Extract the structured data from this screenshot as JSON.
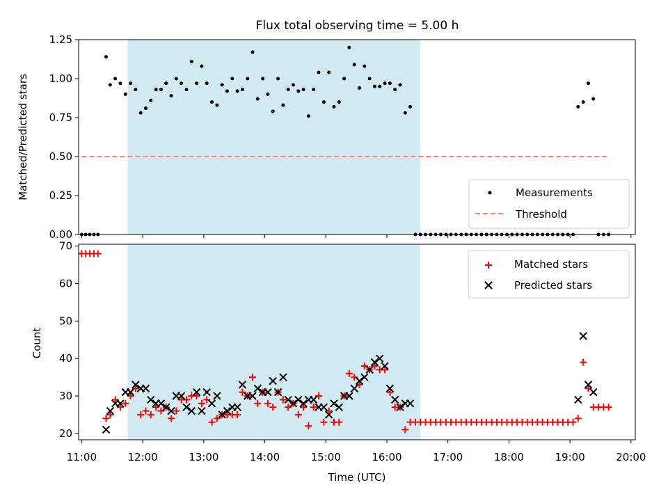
{
  "title": "Flux total observing time = 5.00 h",
  "colors": {
    "band": "#add8e6",
    "measurement": "#000000",
    "threshold": "#ff7f7f",
    "matched": "#ff0000",
    "predicted": "#000000"
  },
  "chart_data": [
    {
      "type": "scatter",
      "ylabel": "Matched/Predicted stars",
      "ylim": [
        0,
        1.25
      ],
      "yticks": [
        "0.00",
        "0.25",
        "0.50",
        "0.75",
        "1.00",
        "1.25"
      ],
      "xlim": [
        10.95,
        20.07
      ],
      "xticks": [
        "11:00",
        "12:00",
        "13:00",
        "14:00",
        "15:00",
        "16:00",
        "17:00",
        "18:00",
        "19:00",
        "20:00"
      ],
      "shaded_interval": [
        "11:25",
        "16:25"
      ],
      "legend": {
        "position": "bottom-right",
        "entries": [
          "Measurements",
          "Threshold"
        ]
      },
      "threshold": {
        "name": "Threshold",
        "y": 0.5,
        "x": [
          11.0,
          19.6
        ]
      },
      "series": [
        {
          "name": "Measurements",
          "x": [
            11.0,
            11.067,
            11.133,
            11.2,
            11.267,
            11.4,
            11.467,
            11.55,
            11.633,
            11.717,
            11.8,
            11.883,
            11.967,
            12.05,
            12.133,
            12.217,
            12.3,
            12.383,
            12.467,
            12.55,
            12.633,
            12.717,
            12.8,
            12.883,
            12.967,
            13.05,
            13.133,
            13.217,
            13.3,
            13.383,
            13.467,
            13.55,
            13.633,
            13.717,
            13.8,
            13.883,
            13.967,
            14.05,
            14.133,
            14.217,
            14.3,
            14.383,
            14.467,
            14.55,
            14.633,
            14.717,
            14.8,
            14.883,
            14.967,
            15.05,
            15.133,
            15.217,
            15.3,
            15.383,
            15.467,
            15.55,
            15.633,
            15.717,
            15.8,
            15.883,
            15.967,
            16.05,
            16.133,
            16.217,
            16.3,
            16.383,
            16.467,
            16.55,
            16.633,
            16.717,
            16.8,
            16.883,
            16.967,
            17.05,
            17.133,
            17.217,
            17.3,
            17.383,
            17.467,
            17.55,
            17.633,
            17.717,
            17.8,
            17.883,
            17.967,
            18.05,
            18.133,
            18.217,
            18.3,
            18.383,
            18.467,
            18.55,
            18.633,
            18.717,
            18.8,
            18.883,
            18.967,
            19.05,
            19.133,
            19.217,
            19.3,
            19.383,
            19.467,
            19.55,
            19.633
          ],
          "y": [
            0,
            0,
            0,
            0,
            0,
            1.14,
            0.96,
            1.0,
            0.97,
            0.9,
            0.97,
            0.93,
            0.78,
            0.81,
            0.86,
            0.93,
            0.93,
            0.97,
            0.89,
            1.0,
            0.97,
            0.93,
            1.11,
            0.97,
            1.08,
            0.97,
            0.85,
            0.83,
            0.96,
            0.92,
            1.0,
            0.92,
            0.93,
            1.0,
            1.17,
            0.87,
            1.0,
            0.9,
            0.79,
            1.0,
            0.83,
            0.93,
            0.96,
            0.92,
            0.93,
            0.76,
            0.93,
            1.04,
            0.85,
            1.04,
            0.82,
            0.85,
            1.0,
            1.2,
            1.09,
            0.94,
            1.08,
            1.0,
            0.95,
            0.95,
            0.97,
            0.97,
            0.93,
            0.96,
            0.78,
            0.82,
            0,
            0,
            0,
            0,
            0,
            0,
            0,
            0,
            0,
            0,
            0,
            0,
            0,
            0,
            0,
            0,
            0,
            0,
            0,
            0,
            0,
            0,
            0,
            0,
            0,
            0,
            0,
            0,
            0,
            0,
            0,
            0,
            0.82,
            0.85,
            0.97,
            0.87,
            0,
            0,
            0
          ]
        }
      ]
    },
    {
      "type": "scatter",
      "xlabel": "Time (UTC)",
      "ylabel": "Count",
      "ylim": [
        18.3,
        70.5
      ],
      "yticks": [
        "20",
        "30",
        "40",
        "50",
        "60",
        "70"
      ],
      "xlim": [
        10.95,
        20.07
      ],
      "xticks": [
        "11:00",
        "12:00",
        "13:00",
        "14:00",
        "15:00",
        "16:00",
        "17:00",
        "18:00",
        "19:00",
        "20:00"
      ],
      "shaded_interval": [
        "11:25",
        "16:25"
      ],
      "legend": {
        "position": "top-right",
        "entries": [
          "Matched stars",
          "Predicted stars"
        ]
      },
      "series": [
        {
          "name": "Matched stars",
          "x": [
            11.0,
            11.067,
            11.133,
            11.2,
            11.267,
            11.4,
            11.467,
            11.55,
            11.633,
            11.717,
            11.8,
            11.883,
            11.967,
            12.05,
            12.133,
            12.217,
            12.3,
            12.383,
            12.467,
            12.55,
            12.633,
            12.717,
            12.8,
            12.883,
            12.967,
            13.05,
            13.133,
            13.217,
            13.3,
            13.383,
            13.467,
            13.55,
            13.633,
            13.717,
            13.8,
            13.883,
            13.967,
            14.05,
            14.133,
            14.217,
            14.3,
            14.383,
            14.467,
            14.55,
            14.633,
            14.717,
            14.8,
            14.883,
            14.967,
            15.05,
            15.133,
            15.217,
            15.3,
            15.383,
            15.467,
            15.55,
            15.633,
            15.717,
            15.8,
            15.883,
            15.967,
            16.05,
            16.133,
            16.217,
            16.3,
            16.383,
            16.467,
            16.55,
            16.633,
            16.717,
            16.8,
            16.883,
            16.967,
            17.05,
            17.133,
            17.217,
            17.3,
            17.383,
            17.467,
            17.55,
            17.633,
            17.717,
            17.8,
            17.883,
            17.967,
            18.05,
            18.133,
            18.217,
            18.3,
            18.383,
            18.467,
            18.55,
            18.633,
            18.717,
            18.8,
            18.883,
            18.967,
            19.05,
            19.133,
            19.217,
            19.3,
            19.383,
            19.467,
            19.55,
            19.633
          ],
          "y": [
            68,
            68,
            68,
            68,
            68,
            24,
            25,
            29,
            27,
            28,
            30,
            32,
            25,
            26,
            25,
            27,
            26,
            27,
            24,
            26,
            29,
            29,
            30,
            30,
            28,
            29,
            23,
            24,
            25,
            25,
            25,
            25,
            31,
            30,
            35,
            28,
            31,
            28,
            27,
            31,
            29,
            27,
            28,
            25,
            27,
            22,
            27,
            30,
            23,
            26,
            23,
            23,
            30,
            36,
            35,
            33,
            38,
            37,
            38,
            37,
            37,
            31,
            27,
            27,
            21,
            23,
            23,
            23,
            23,
            23,
            23,
            23,
            23,
            23,
            23,
            23,
            23,
            23,
            23,
            23,
            23,
            23,
            23,
            23,
            23,
            23,
            23,
            23,
            23,
            23,
            23,
            23,
            23,
            23,
            23,
            23,
            23,
            23,
            24,
            39,
            32,
            27,
            27,
            27,
            27
          ]
        },
        {
          "name": "Predicted stars",
          "x": [
            11.4,
            11.467,
            11.55,
            11.633,
            11.717,
            11.8,
            11.883,
            11.967,
            12.05,
            12.133,
            12.217,
            12.3,
            12.383,
            12.467,
            12.55,
            12.633,
            12.717,
            12.8,
            12.883,
            12.967,
            13.05,
            13.133,
            13.217,
            13.3,
            13.383,
            13.467,
            13.55,
            13.633,
            13.717,
            13.8,
            13.883,
            13.967,
            14.05,
            14.133,
            14.217,
            14.3,
            14.383,
            14.467,
            14.55,
            14.633,
            14.717,
            14.8,
            14.883,
            14.967,
            15.05,
            15.133,
            15.217,
            15.3,
            15.383,
            15.467,
            15.55,
            15.633,
            15.717,
            15.8,
            15.883,
            15.967,
            16.05,
            16.133,
            16.217,
            16.3,
            16.383,
            19.133,
            19.217,
            19.3,
            19.383
          ],
          "y": [
            21,
            26,
            28,
            28,
            31,
            31,
            33,
            32,
            32,
            29,
            28,
            28,
            27,
            26,
            30,
            30,
            27,
            26,
            31,
            26,
            31,
            28,
            30,
            25,
            26,
            27,
            27,
            33,
            30,
            30,
            32,
            31,
            31,
            34,
            31,
            35,
            29,
            28,
            29,
            28,
            29,
            29,
            27,
            27,
            25,
            28,
            27,
            30,
            30,
            32,
            34,
            35,
            37,
            39,
            40,
            38,
            32,
            29,
            27,
            28,
            28,
            29,
            46,
            33,
            31
          ]
        }
      ]
    }
  ]
}
